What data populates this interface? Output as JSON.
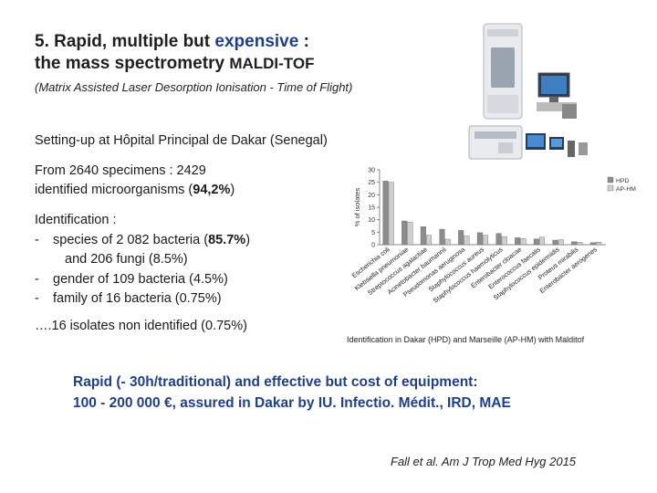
{
  "slide": {
    "title_num": "5. Rapid, multiple but ",
    "title_accent": "expensive",
    "title_rest": " :",
    "title_line2_a": "the mass spectrometry ",
    "title_line2_b": "MALDI-TOF",
    "subtitle": "(Matrix Assisted Laser Desorption Ionisation - Time of Flight)",
    "setup": "Setting-up at Hôpital Principal de Dakar (Senegal)",
    "specimens_line1": "From 2640 specimens : 2429",
    "specimens_line2_a": "identified microorganisms (",
    "specimens_line2_b": "94,2%",
    "specimens_line2_c": ")",
    "ident_heading": "Identification :",
    "ident_items": [
      {
        "dash": "-",
        "text_a": "species of 2 082 bacteria (",
        "text_b": "85.7%",
        "text_c": ")"
      },
      {
        "text": "and  206 fungi (8.5%)"
      },
      {
        "dash": "-",
        "text": "gender of 109 bacteria (4.5%)"
      },
      {
        "dash": "-",
        "text": "family of 16 bacteria (0.75%)"
      }
    ],
    "non_identified": "….16 isolates non identified (0.75%)",
    "caption": "Identification in Dakar (HPD) and Marseille (AP-HM) with Malditof",
    "rapid_line1": "Rapid (- 30h/traditional) and effective but cost of equipment:",
    "rapid_line2": "100 - 200 000 €, assured in Dakar by IU. Infectio. Médit., IRD, MAE",
    "citation": "Fall et al. Am J Trop Med Hyg 2015"
  },
  "chart_data": {
    "type": "bar",
    "ylabel": "% of isolates",
    "ylim": [
      0,
      30
    ],
    "yticks": [
      "30",
      "25",
      "20",
      "15",
      "10",
      "5",
      "0"
    ],
    "categories": [
      "Escherichia coli",
      "Klebsiella pneumoniae",
      "Streptococcus agalactiae",
      "Acinetobacter baumannii",
      "Pseudomonas aeruginosa",
      "Staphylococcus aureus",
      "Staphylococcus haemolyticus",
      "Enterobacter cloacae",
      "Enterococcus faecalis",
      "Staphylococcus epidermidis",
      "Proteus mirabilis",
      "Enterobacter aerogenes"
    ],
    "series": [
      {
        "name": "HPD",
        "color": "#8c8c8c",
        "values": [
          25.5,
          9.5,
          7.2,
          6.2,
          5.7,
          4.8,
          4.5,
          2.8,
          2.3,
          1.8,
          1.2,
          0.8
        ]
      },
      {
        "name": "AP-HM",
        "color": "#cfcfcf",
        "values": [
          25.0,
          9.0,
          3.8,
          2.2,
          3.5,
          3.8,
          3.2,
          2.5,
          3.0,
          2.0,
          1.0,
          1.0
        ]
      }
    ],
    "legend": "top-right"
  }
}
